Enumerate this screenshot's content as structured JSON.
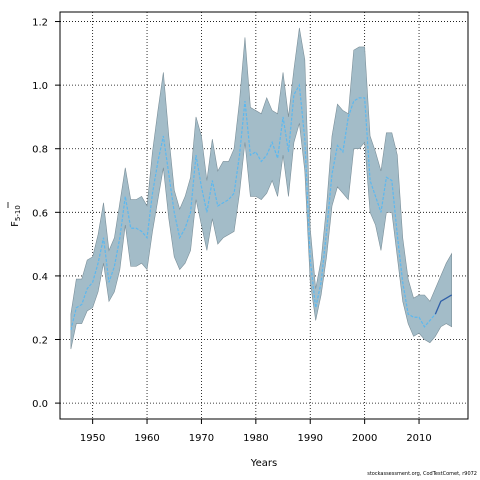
{
  "chart_data": {
    "type": "line",
    "xlabel": "Years",
    "ylabel": "F",
    "ylabel_sub": "5-10",
    "xlim": [
      1944,
      2019
    ],
    "ylim": [
      -0.05,
      1.23
    ],
    "x_ticks": [
      1950,
      1960,
      1970,
      1980,
      1990,
      2000,
      2010
    ],
    "y_ticks": [
      0.0,
      0.2,
      0.4,
      0.6,
      0.8,
      1.0,
      1.2
    ],
    "grid": true,
    "colors": {
      "band": "#a3bcc8",
      "band_edge": "#7b8f99",
      "line": "#5cb8ef",
      "line_last": "#2f5fa8"
    },
    "series": [
      {
        "x": [
          1946,
          1947,
          1948,
          1949,
          1950,
          1951,
          1952,
          1953,
          1954,
          1955,
          1956,
          1957,
          1958,
          1959,
          1960,
          1961,
          1962,
          1963,
          1964,
          1965,
          1966,
          1967,
          1968,
          1969,
          1970,
          1971,
          1972,
          1973,
          1974,
          1975,
          1976,
          1977,
          1978,
          1979,
          1980,
          1981,
          1982,
          1983,
          1984,
          1985,
          1986,
          1987,
          1988,
          1989,
          1990,
          1991,
          1992,
          1993,
          1994,
          1995,
          1996,
          1997,
          1998,
          1999,
          2000,
          2001,
          2002,
          2003,
          2004,
          2005,
          2006,
          2007,
          2008,
          2009,
          2010,
          2011,
          2012,
          2013,
          2014,
          2015,
          2016
        ],
        "estimate": [
          0.23,
          0.3,
          0.31,
          0.36,
          0.38,
          0.44,
          0.52,
          0.38,
          0.43,
          0.52,
          0.65,
          0.55,
          0.55,
          0.54,
          0.52,
          0.66,
          0.76,
          0.84,
          0.72,
          0.6,
          0.52,
          0.55,
          0.6,
          0.78,
          0.68,
          0.6,
          0.7,
          0.62,
          0.63,
          0.64,
          0.66,
          0.78,
          0.95,
          0.78,
          0.79,
          0.76,
          0.78,
          0.82,
          0.77,
          0.9,
          0.79,
          0.97,
          1.0,
          0.83,
          0.45,
          0.3,
          0.38,
          0.54,
          0.72,
          0.81,
          0.79,
          0.9,
          0.95,
          0.96,
          0.96,
          0.7,
          0.65,
          0.6,
          0.71,
          0.7,
          0.53,
          0.38,
          0.28,
          0.27,
          0.27,
          0.24,
          0.26,
          0.28,
          0.32,
          0.33,
          0.34
        ],
        "lower": [
          0.17,
          0.25,
          0.25,
          0.29,
          0.3,
          0.35,
          0.44,
          0.32,
          0.35,
          0.42,
          0.56,
          0.43,
          0.43,
          0.44,
          0.42,
          0.54,
          0.64,
          0.74,
          0.58,
          0.46,
          0.42,
          0.44,
          0.48,
          0.64,
          0.56,
          0.48,
          0.58,
          0.5,
          0.52,
          0.53,
          0.54,
          0.66,
          0.82,
          0.65,
          0.65,
          0.64,
          0.66,
          0.7,
          0.65,
          0.78,
          0.65,
          0.82,
          0.88,
          0.73,
          0.38,
          0.26,
          0.34,
          0.46,
          0.62,
          0.68,
          0.66,
          0.64,
          0.8,
          0.8,
          0.82,
          0.6,
          0.56,
          0.48,
          0.6,
          0.6,
          0.46,
          0.32,
          0.25,
          0.21,
          0.22,
          0.2,
          0.19,
          0.21,
          0.24,
          0.25,
          0.24
        ],
        "upper": [
          0.28,
          0.39,
          0.39,
          0.45,
          0.46,
          0.53,
          0.63,
          0.48,
          0.52,
          0.63,
          0.74,
          0.64,
          0.64,
          0.65,
          0.62,
          0.79,
          0.92,
          1.04,
          0.84,
          0.67,
          0.61,
          0.65,
          0.71,
          0.9,
          0.84,
          0.7,
          0.83,
          0.73,
          0.76,
          0.76,
          0.8,
          0.95,
          1.15,
          0.93,
          0.92,
          0.91,
          0.96,
          0.92,
          0.91,
          1.04,
          0.9,
          1.05,
          1.18,
          1.08,
          0.55,
          0.36,
          0.45,
          0.62,
          0.84,
          0.94,
          0.92,
          0.91,
          1.11,
          1.12,
          1.12,
          0.84,
          0.79,
          0.73,
          0.85,
          0.85,
          0.78,
          0.52,
          0.39,
          0.33,
          0.34,
          0.34,
          0.32,
          0.36,
          0.4,
          0.44,
          0.47
        ]
      }
    ]
  },
  "footer": "stockassessment.org, CodTestComet, r9072"
}
